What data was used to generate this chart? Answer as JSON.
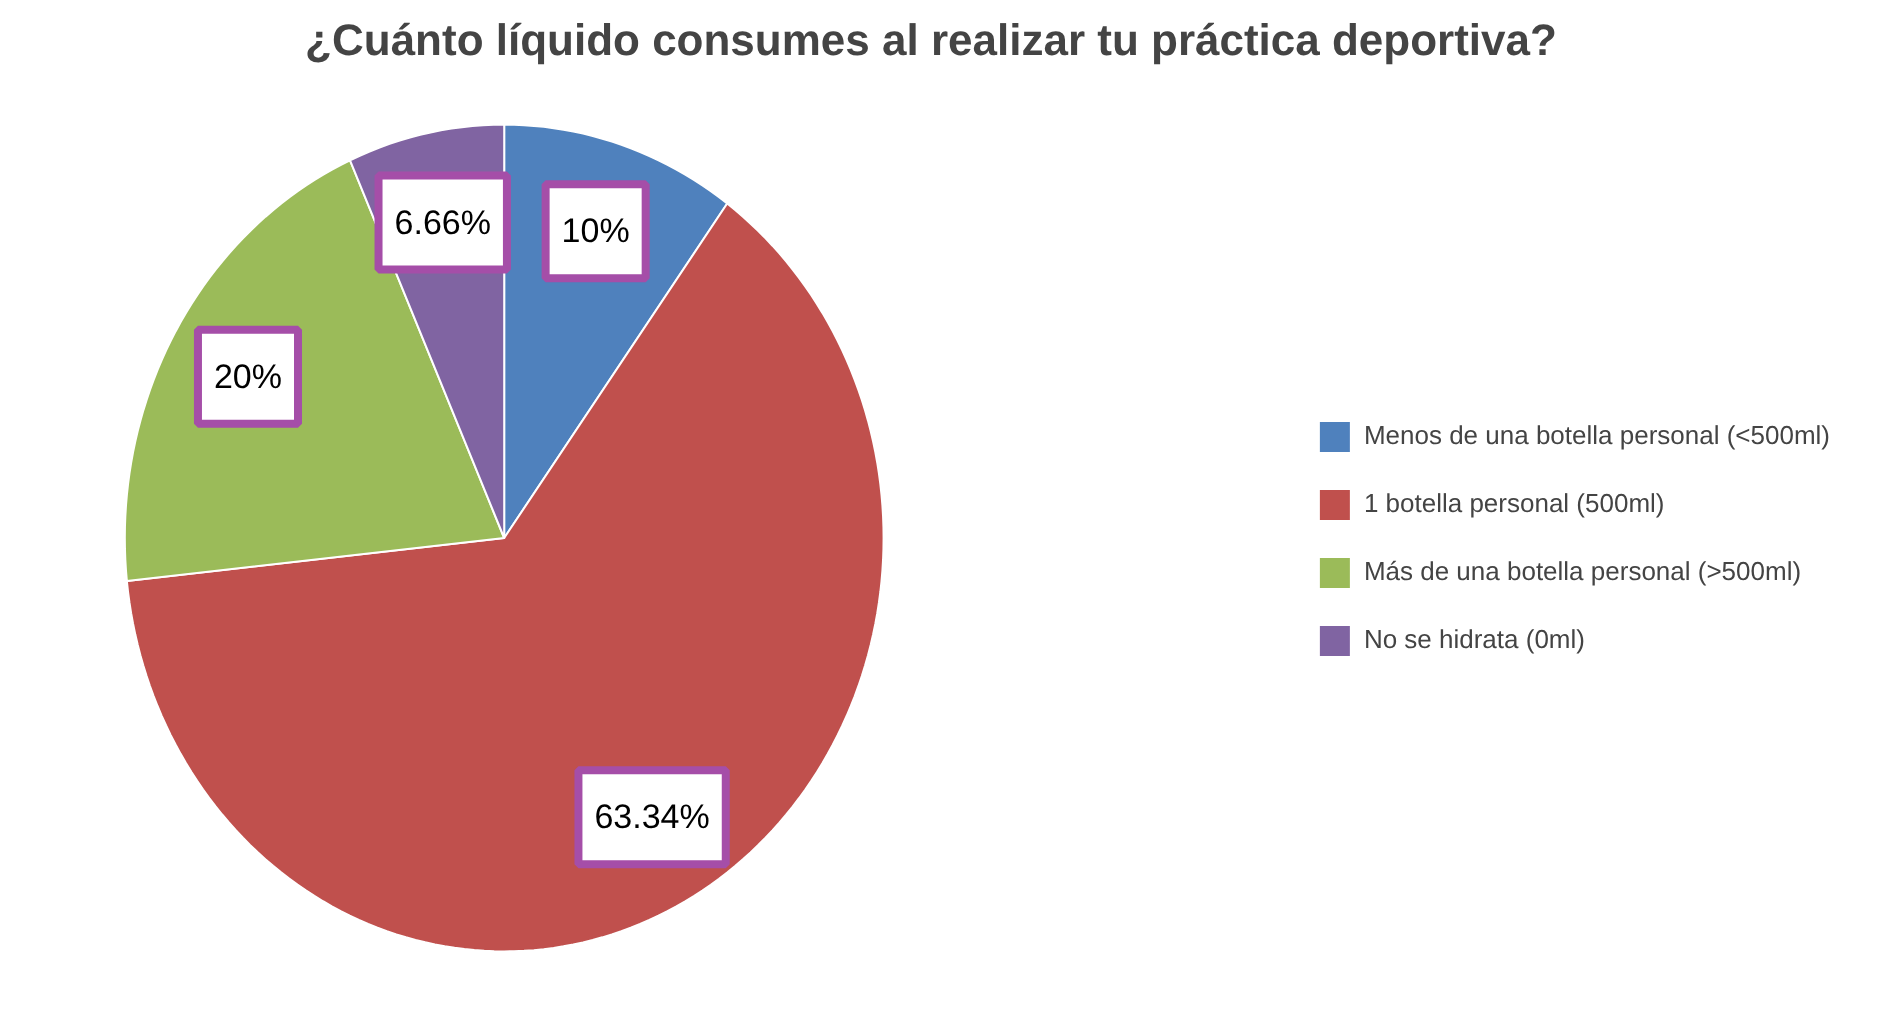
{
  "chart_data": {
    "type": "pie",
    "title": "¿Cuánto líquido consumes al realizar tu práctica deportiva?",
    "categories": [
      "Menos de una botella personal (<500ml)",
      "1 botella personal (500ml)",
      "Más de una botella personal (>500ml)",
      "No se hidrata (0ml)"
    ],
    "values": [
      10,
      63.34,
      20,
      6.66
    ],
    "colors": [
      "#4f81bd",
      "#c0504d",
      "#9bbb59",
      "#8064a2"
    ],
    "value_labels": [
      "10%",
      "63.34%",
      "20%",
      "6.66%"
    ],
    "legend": "right"
  }
}
